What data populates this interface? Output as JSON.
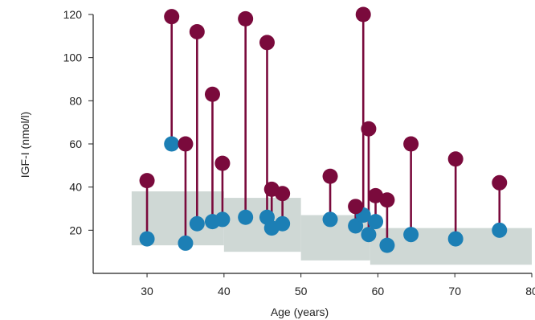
{
  "chart_data": {
    "type": "scatter",
    "title": "",
    "xlabel": "Age (years)",
    "ylabel": "IGF-I (nmol/l)",
    "xlim": [
      23,
      80
    ],
    "ylim": [
      0,
      120
    ],
    "x_ticks": [
      30,
      40,
      50,
      60,
      70,
      80
    ],
    "y_ticks": [
      20,
      40,
      60,
      80,
      100,
      120
    ],
    "grid": false,
    "colors": {
      "series_high": "#7a0a3c",
      "series_low": "#1c7fb5",
      "reference_band": "#cfd8d5",
      "axis": "#222222"
    },
    "reference_range": [
      {
        "age_from": 28,
        "age_to": 40,
        "igf_low": 13,
        "igf_high": 38
      },
      {
        "age_from": 40,
        "age_to": 50,
        "igf_low": 10,
        "igf_high": 35
      },
      {
        "age_from": 50,
        "age_to": 59,
        "igf_low": 6,
        "igf_high": 27
      },
      {
        "age_from": 59,
        "age_to": 80,
        "igf_low": 4,
        "igf_high": 21
      }
    ],
    "series": [
      {
        "x": [
          30,
          33.2,
          35,
          36.5,
          38.5,
          39.8,
          42.8,
          45.6,
          46.2,
          47.6,
          53.8,
          57.1,
          58.1,
          58.8,
          59.7,
          61.2,
          64.3,
          70.1,
          75.8
        ],
        "values": [
          43,
          119,
          60,
          112,
          83,
          51,
          118,
          107,
          39,
          37,
          45,
          31,
          120,
          67,
          36,
          34,
          60,
          53,
          42
        ]
      },
      {
        "x": [
          30,
          33.2,
          35,
          36.5,
          38.5,
          39.8,
          42.8,
          45.6,
          46.2,
          47.6,
          53.8,
          57.1,
          58.1,
          58.8,
          59.7,
          61.2,
          64.3,
          70.1,
          75.8
        ],
        "values": [
          16,
          60,
          14,
          23,
          24,
          25,
          26,
          26,
          21,
          23,
          25,
          22,
          27,
          18,
          24,
          13,
          18,
          16,
          20
        ]
      }
    ]
  }
}
